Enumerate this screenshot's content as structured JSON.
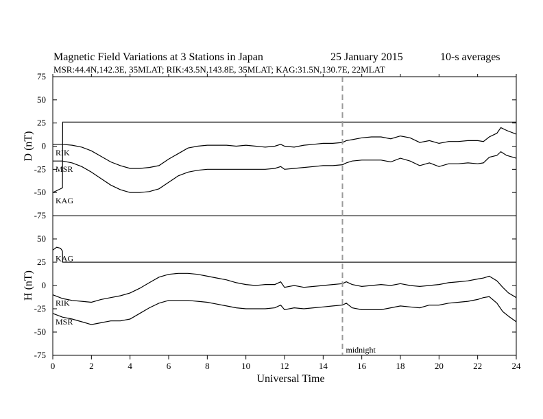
{
  "title": {
    "main": "Magnetic Field Variations at 3 Stations in Japan",
    "date": "25 January 2015",
    "avg": "10-s averages",
    "stations": "MSR:44.4N,142.3E, 35MLAT;  RIK:43.5N,143.8E, 35MLAT;  KAG:31.5N,130.7E, 22MLAT"
  },
  "chart_data": {
    "type": "line",
    "xlabel": "Universal Time",
    "xlim": [
      0,
      24
    ],
    "xticks": [
      0,
      2,
      4,
      6,
      8,
      10,
      12,
      14,
      16,
      18,
      20,
      22,
      24
    ],
    "midnight": {
      "x": 15,
      "label": "midnight"
    },
    "panels": [
      {
        "ylabel": "D (nT)",
        "ylim": [
          -75,
          75
        ],
        "yticks": [
          75,
          50,
          25,
          0,
          -25,
          -50,
          -75
        ],
        "series": [
          {
            "name": "RIK",
            "x": [
              0,
              0.5,
              1,
              1.5,
              2,
              2.5,
              3,
              3.5,
              4,
              4.5,
              5,
              5.5,
              6,
              6.5,
              7,
              7.5,
              8,
              8.5,
              9,
              9.5,
              10,
              10.5,
              11,
              11.5,
              11.8,
              12,
              12.5,
              13,
              13.5,
              14,
              14.5,
              15,
              15.2,
              15.5,
              16,
              16.5,
              17,
              17.5,
              18,
              18.5,
              19,
              19.5,
              20,
              20.5,
              21,
              21.5,
              22,
              22.3,
              22.6,
              23,
              23.2,
              23.5,
              24
            ],
            "y": [
              2,
              2,
              1,
              -1,
              -5,
              -11,
              -17,
              -21,
              -24,
              -24,
              -23,
              -21,
              -14,
              -8,
              -2,
              0,
              1,
              1,
              1,
              0,
              1,
              0,
              -1,
              0,
              2,
              0,
              -1,
              1,
              2,
              3,
              3,
              4,
              6,
              7,
              9,
              10,
              10,
              8,
              11,
              9,
              4,
              6,
              3,
              5,
              5,
              6,
              6,
              5,
              10,
              14,
              20,
              17,
              13
            ]
          },
          {
            "name": "MSR",
            "x": [
              0,
              0.5,
              1,
              1.5,
              2,
              2.5,
              3,
              3.5,
              4,
              4.5,
              5,
              5.5,
              6,
              6.5,
              7,
              7.5,
              8,
              8.5,
              9,
              9.5,
              10,
              10.5,
              11,
              11.5,
              11.8,
              12,
              12.5,
              13,
              13.5,
              14,
              14.5,
              15,
              15.2,
              15.5,
              16,
              16.5,
              17,
              17.5,
              18,
              18.5,
              19,
              19.5,
              20,
              20.5,
              21,
              21.5,
              22,
              22.3,
              22.6,
              23,
              23.2,
              23.5,
              24
            ],
            "y": [
              -16,
              -16,
              -18,
              -22,
              -28,
              -35,
              -42,
              -47,
              -50,
              -50,
              -49,
              -46,
              -39,
              -32,
              -28,
              -26,
              -25,
              -25,
              -25,
              -25,
              -25,
              -25,
              -25,
              -24,
              -22,
              -25,
              -24,
              -23,
              -22,
              -21,
              -21,
              -20,
              -18,
              -16,
              -15,
              -15,
              -15,
              -17,
              -13,
              -16,
              -21,
              -18,
              -22,
              -19,
              -19,
              -18,
              -19,
              -18,
              -12,
              -10,
              -6,
              -10,
              -13
            ]
          },
          {
            "name": "KAG",
            "x": [
              0,
              0.2,
              0.5,
              0.51,
              24
            ],
            "y": [
              -50,
              -48,
              -45,
              26,
              26
            ]
          }
        ]
      },
      {
        "ylabel": "H (nT)",
        "ylim": [
          -75,
          75
        ],
        "yticks": [
          50,
          25,
          0,
          -25,
          -50,
          -75
        ],
        "series": [
          {
            "name": "KAG",
            "x": [
              0,
              0.2,
              0.4,
              0.5,
              0.51,
              24
            ],
            "y": [
              38,
              41,
              40,
              37,
              25,
              25
            ]
          },
          {
            "name": "RIK",
            "x": [
              0,
              0.5,
              1,
              1.5,
              2,
              2.5,
              3,
              3.5,
              4,
              4.5,
              5,
              5.5,
              6,
              6.5,
              7,
              7.5,
              8,
              8.5,
              9,
              9.5,
              10,
              10.5,
              11,
              11.5,
              11.8,
              12,
              12.5,
              13,
              13.5,
              14,
              14.5,
              15,
              15.2,
              15.5,
              16,
              16.5,
              17,
              17.5,
              18,
              18.5,
              19,
              19.5,
              20,
              20.5,
              21,
              21.5,
              22,
              22.3,
              22.6,
              23,
              23.3,
              23.6,
              24
            ],
            "y": [
              -10,
              -14,
              -16,
              -17,
              -18,
              -15,
              -13,
              -11,
              -8,
              -3,
              3,
              9,
              12,
              13,
              13,
              12,
              10,
              8,
              6,
              3,
              1,
              0,
              1,
              1,
              4,
              -2,
              0,
              -2,
              -1,
              0,
              1,
              2,
              4,
              1,
              -1,
              0,
              1,
              0,
              2,
              0,
              -1,
              0,
              1,
              3,
              4,
              5,
              7,
              8,
              10,
              5,
              -2,
              -8,
              -13
            ]
          },
          {
            "name": "MSR",
            "x": [
              0,
              0.5,
              1,
              1.5,
              2,
              2.5,
              3,
              3.5,
              4,
              4.5,
              5,
              5.5,
              6,
              6.5,
              7,
              7.5,
              8,
              8.5,
              9,
              9.5,
              10,
              10.5,
              11,
              11.5,
              11.8,
              12,
              12.5,
              13,
              13.5,
              14,
              14.5,
              15,
              15.2,
              15.5,
              16,
              16.5,
              17,
              17.5,
              18,
              18.5,
              19,
              19.5,
              20,
              20.5,
              21,
              21.5,
              22,
              22.3,
              22.6,
              23,
              23.3,
              23.6,
              24
            ],
            "y": [
              -30,
              -34,
              -36,
              -39,
              -42,
              -40,
              -38,
              -38,
              -36,
              -30,
              -24,
              -19,
              -16,
              -16,
              -16,
              -17,
              -18,
              -20,
              -22,
              -24,
              -25,
              -25,
              -25,
              -24,
              -21,
              -26,
              -24,
              -25,
              -24,
              -23,
              -22,
              -21,
              -19,
              -24,
              -26,
              -26,
              -26,
              -24,
              -22,
              -23,
              -24,
              -21,
              -21,
              -19,
              -18,
              -17,
              -15,
              -13,
              -12,
              -19,
              -28,
              -33,
              -39
            ]
          }
        ]
      }
    ]
  }
}
